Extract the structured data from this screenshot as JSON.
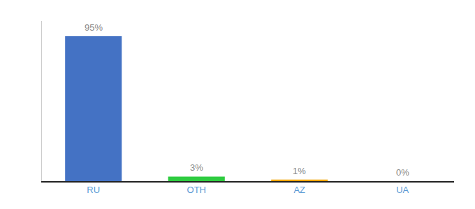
{
  "chart_data": {
    "type": "bar",
    "categories": [
      "RU",
      "OTH",
      "AZ",
      "UA"
    ],
    "values": [
      95,
      3,
      1,
      0
    ],
    "value_labels": [
      "95%",
      "3%",
      "1%",
      "0%"
    ],
    "colors": [
      "#4472c4",
      "#2ecc40",
      "#f0a500",
      "#f0a500"
    ],
    "ylim": [
      0,
      105
    ],
    "grid": false,
    "data_labels": true,
    "tick_labels": "x"
  }
}
